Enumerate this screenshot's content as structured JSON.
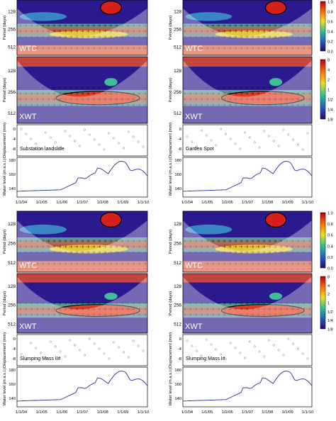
{
  "panels": [
    {
      "name": "Substation landslide"
    },
    {
      "name": "Garden Spot"
    },
    {
      "name": "Slumping Mass II#"
    },
    {
      "name": "Slumping Mass I#"
    }
  ],
  "labels": {
    "wtc": "WTC",
    "xwt": "XWT",
    "period_axis": "Period (days)",
    "disp_axis": "Displacement (mm)",
    "water_axis": "Water level (m a.s.l.)"
  },
  "chart_data": {
    "type": "heatmap",
    "period_ticks": [
      "128",
      "256",
      "512"
    ],
    "disp_ticks": [
      "0",
      "-4",
      "-8"
    ],
    "water_ticks": [
      "180",
      "160",
      "140"
    ],
    "x_ticks": [
      "1/1/04",
      "1/1/05",
      "1/1/06",
      "1/1/07",
      "1/1/08",
      "1/1/09",
      "1/1/10"
    ],
    "wtc_colorbar_ticks": [
      "1.0",
      "0.8",
      "0.6",
      "0.4",
      "0.2",
      "0.0"
    ],
    "xwt_colorbar_ticks": [
      "8",
      "4",
      "2",
      "1",
      "1/2",
      "1/4",
      "1/8"
    ],
    "water_level_series": {
      "x": [
        "1/1/04",
        "1/1/05",
        "1/1/06",
        "1/1/07",
        "1/1/08",
        "1/1/09",
        "1/1/10"
      ],
      "y": [
        138,
        139,
        140,
        154,
        160,
        170,
        150
      ]
    }
  },
  "colors": {
    "low": "#2b1a8f",
    "mid": "#3dbb9a",
    "high": "#e8321e",
    "line": "#223399"
  }
}
